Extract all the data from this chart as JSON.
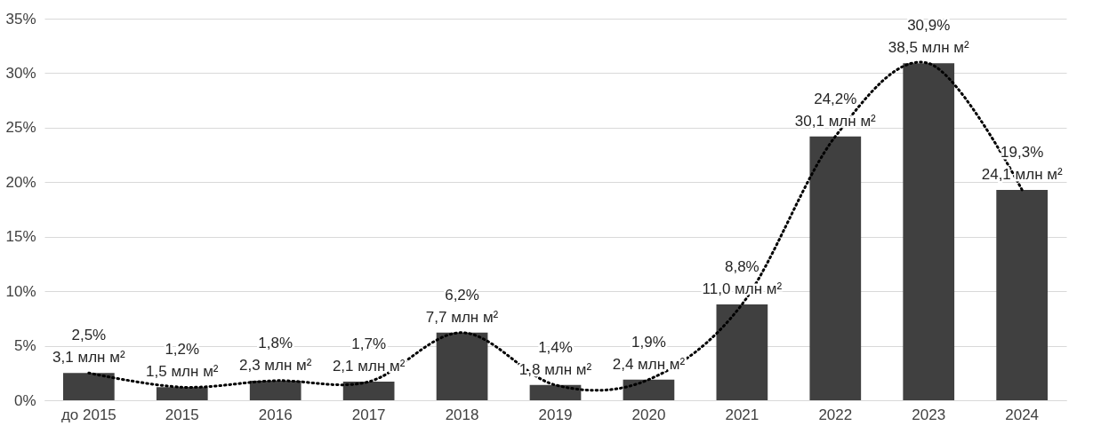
{
  "chart_data": {
    "type": "bar",
    "categories": [
      "до 2015",
      "2015",
      "2016",
      "2017",
      "2018",
      "2019",
      "2020",
      "2021",
      "2022",
      "2023",
      "2024"
    ],
    "ylim": [
      0,
      35
    ],
    "yticks": [
      {
        "value": 0,
        "label": "0%"
      },
      {
        "value": 5,
        "label": "5%"
      },
      {
        "value": 10,
        "label": "10%"
      },
      {
        "value": 15,
        "label": "15%"
      },
      {
        "value": 20,
        "label": "20%"
      },
      {
        "value": 25,
        "label": "25%"
      },
      {
        "value": 30,
        "label": "30%"
      },
      {
        "value": 35,
        "label": "35%"
      }
    ],
    "grid": "y",
    "marker": "none",
    "series": [
      {
        "color": "#404040",
        "values": [
          2.5,
          1.2,
          1.8,
          1.7,
          6.2,
          1.4,
          1.9,
          8.8,
          24.2,
          30.9,
          19.3
        ],
        "value_labels": [
          "2,5%\n3,1 млн м²",
          "1,2%\n1,5 млн м²",
          "1,8%\n2,3 млн м²",
          "1,7%\n2,1 млн м²",
          "6,2%\n7,7 млн м²",
          "1,4%\n1,8 млн м²",
          "1,9%\n2,4 млн м²",
          "8,8%\n11,0 млн м²",
          "24,2%\n30,1 млн м²",
          "30,9%\n38,5 млн м²",
          "19,3%\n24,1 млн м²"
        ]
      },
      {
        "type": "line",
        "color": "#000000",
        "line_style": "dotted",
        "values": [
          2.5,
          1.2,
          1.8,
          1.7,
          6.2,
          1.4,
          1.9,
          8.8,
          24.2,
          30.9,
          19.3
        ]
      }
    ]
  }
}
